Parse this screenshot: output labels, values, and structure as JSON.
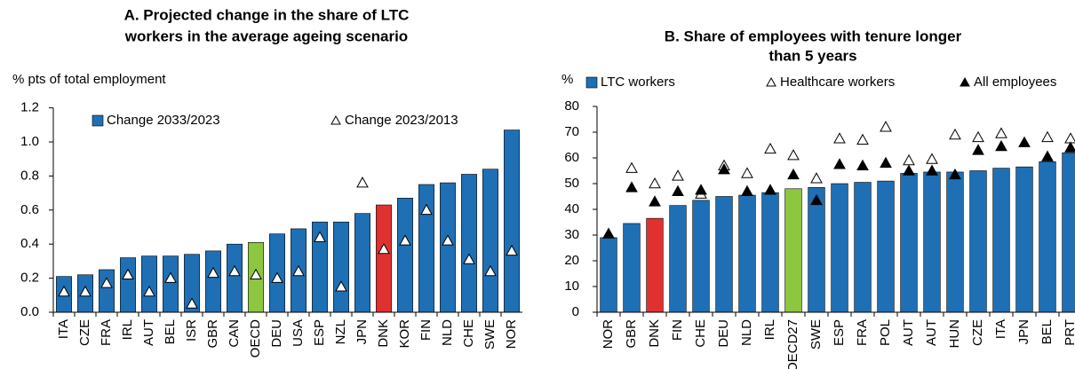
{
  "chart_data": [
    {
      "type": "bar",
      "title": [
        "A. Projected change in the share of LTC",
        "workers in the average ageing scenario"
      ],
      "ylabel": "% pts of total employment",
      "categories": [
        "ITA",
        "CZE",
        "FRA",
        "IRL",
        "AUT",
        "BEL",
        "ISR",
        "GBR",
        "CAN",
        "OECD",
        "DEU",
        "USA",
        "ESP",
        "NZL",
        "JPN",
        "DNK",
        "KOR",
        "FIN",
        "NLD",
        "CHE",
        "SWE",
        "NOR"
      ],
      "series": [
        {
          "name": "Change 2033/2023",
          "color": "#1f6fb5",
          "colors": [
            "#1f6fb5",
            "#1f6fb5",
            "#1f6fb5",
            "#1f6fb5",
            "#1f6fb5",
            "#1f6fb5",
            "#1f6fb5",
            "#1f6fb5",
            "#1f6fb5",
            "#8dc63f",
            "#1f6fb5",
            "#1f6fb5",
            "#1f6fb5",
            "#1f6fb5",
            "#1f6fb5",
            "#e03131",
            "#1f6fb5",
            "#1f6fb5",
            "#1f6fb5",
            "#1f6fb5",
            "#1f6fb5",
            "#1f6fb5"
          ],
          "values": [
            0.21,
            0.22,
            0.25,
            0.32,
            0.33,
            0.33,
            0.34,
            0.36,
            0.4,
            0.41,
            0.46,
            0.49,
            0.53,
            0.53,
            0.58,
            0.63,
            0.67,
            0.75,
            0.76,
            0.81,
            0.84,
            1.07
          ]
        },
        {
          "name": "Change 2023/2013",
          "color": "#ffffff",
          "marker": "triangle-open",
          "values": [
            0.12,
            0.12,
            0.17,
            0.22,
            0.12,
            0.2,
            0.05,
            0.23,
            0.24,
            0.22,
            0.2,
            0.24,
            0.44,
            0.15,
            0.76,
            0.37,
            0.42,
            0.6,
            0.42,
            0.31,
            0.24,
            0.36
          ]
        }
      ],
      "ylim": [
        0,
        1.2
      ],
      "yticks": [
        {
          "value": 0,
          "label": "0.0"
        },
        0.2,
        0.4,
        0.6,
        0.8,
        {
          "value": 1,
          "label": "1.0"
        },
        1.2
      ],
      "legend": "top"
    },
    {
      "type": "bar",
      "title": [
        "B. Share of employees with tenure longer",
        "than 5 years"
      ],
      "ylabel": "%",
      "categories": [
        "NOR",
        "GBR",
        "DNK",
        "FIN",
        "CHE",
        "DEU",
        "NLD",
        "IRL",
        "OECD27",
        "SWE",
        "ESP",
        "FRA",
        "POL",
        "AUT",
        "AUT",
        "HUN",
        "CZE",
        "ITA",
        "JPN",
        "BEL",
        "PRT"
      ],
      "series": [
        {
          "name": "LTC workers",
          "color": "#1f6fb5",
          "colors": [
            "#1f6fb5",
            "#1f6fb5",
            "#e03131",
            "#1f6fb5",
            "#1f6fb5",
            "#1f6fb5",
            "#1f6fb5",
            "#1f6fb5",
            "#8dc63f",
            "#1f6fb5",
            "#1f6fb5",
            "#1f6fb5",
            "#1f6fb5",
            "#1f6fb5",
            "#1f6fb5",
            "#1f6fb5",
            "#1f6fb5",
            "#1f6fb5",
            "#1f6fb5",
            "#1f6fb5",
            "#1f6fb5"
          ],
          "values": [
            29,
            34.5,
            36.5,
            41.5,
            43.5,
            45,
            45.5,
            46.5,
            48,
            48.5,
            50,
            50.5,
            51,
            54,
            54.5,
            54.5,
            55,
            56,
            56.5,
            58.5,
            62
          ]
        },
        {
          "name": "Healthcare workers",
          "color": "#ffffff",
          "marker": "triangle-open",
          "values": [
            null,
            56,
            50,
            53,
            46,
            57,
            54,
            63.5,
            61,
            52,
            67.5,
            67,
            72,
            59,
            59.5,
            69,
            68,
            69.5,
            null,
            68,
            67.5
          ]
        },
        {
          "name": "All employees",
          "color": "#000000",
          "marker": "triangle",
          "values": [
            30.5,
            48.5,
            43,
            47,
            47.5,
            55.5,
            47,
            47.5,
            53.5,
            43.5,
            57.5,
            57,
            58,
            55,
            55,
            53.5,
            63,
            64.5,
            66,
            60.5,
            64
          ]
        }
      ],
      "ylim": [
        0,
        80
      ],
      "yticks": [
        0,
        10,
        20,
        30,
        40,
        50,
        60,
        70,
        80
      ],
      "legend": "top"
    }
  ]
}
